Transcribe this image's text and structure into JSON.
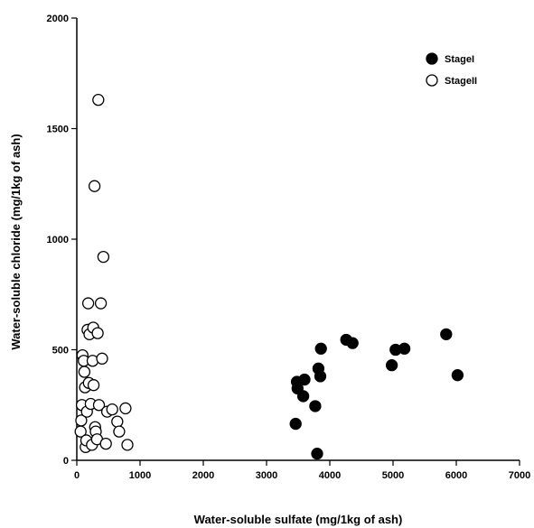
{
  "chart_data": {
    "type": "scatter",
    "xlabel": "Water-soluble sulfate (mg/1kg of ash)",
    "ylabel": "Water-soluble chloride (mg/1kg of ash)",
    "xlim": [
      0,
      7000
    ],
    "ylim": [
      0,
      2000
    ],
    "x_ticks": [
      "0",
      "1000",
      "2000",
      "3000",
      "4000",
      "5000",
      "6000",
      "7000"
    ],
    "y_ticks": [
      "0",
      "500",
      "1000",
      "1500",
      "2000"
    ],
    "legend_position": "top-right",
    "series": [
      {
        "name": "StageI",
        "marker": "filled-circle",
        "color": "#000000",
        "points": [
          {
            "x": 3460,
            "y": 165
          },
          {
            "x": 3480,
            "y": 355
          },
          {
            "x": 3490,
            "y": 325
          },
          {
            "x": 3580,
            "y": 290
          },
          {
            "x": 3600,
            "y": 365
          },
          {
            "x": 3770,
            "y": 245
          },
          {
            "x": 3800,
            "y": 30
          },
          {
            "x": 3820,
            "y": 415
          },
          {
            "x": 3850,
            "y": 380
          },
          {
            "x": 3860,
            "y": 505
          },
          {
            "x": 4260,
            "y": 545
          },
          {
            "x": 4360,
            "y": 530
          },
          {
            "x": 4980,
            "y": 430
          },
          {
            "x": 5040,
            "y": 500
          },
          {
            "x": 5180,
            "y": 505
          },
          {
            "x": 5840,
            "y": 570
          },
          {
            "x": 6020,
            "y": 385
          }
        ]
      },
      {
        "name": "StageII",
        "marker": "open-circle",
        "color": "#000000",
        "points": [
          {
            "x": 60,
            "y": 130
          },
          {
            "x": 70,
            "y": 180
          },
          {
            "x": 80,
            "y": 250
          },
          {
            "x": 90,
            "y": 475
          },
          {
            "x": 110,
            "y": 450
          },
          {
            "x": 120,
            "y": 400
          },
          {
            "x": 130,
            "y": 330
          },
          {
            "x": 140,
            "y": 60
          },
          {
            "x": 150,
            "y": 90
          },
          {
            "x": 160,
            "y": 220
          },
          {
            "x": 170,
            "y": 590
          },
          {
            "x": 180,
            "y": 710
          },
          {
            "x": 190,
            "y": 350
          },
          {
            "x": 200,
            "y": 570
          },
          {
            "x": 220,
            "y": 255
          },
          {
            "x": 240,
            "y": 70
          },
          {
            "x": 250,
            "y": 450
          },
          {
            "x": 260,
            "y": 600
          },
          {
            "x": 265,
            "y": 340
          },
          {
            "x": 280,
            "y": 1240
          },
          {
            "x": 290,
            "y": 150
          },
          {
            "x": 300,
            "y": 130
          },
          {
            "x": 320,
            "y": 95
          },
          {
            "x": 330,
            "y": 575
          },
          {
            "x": 340,
            "y": 1630
          },
          {
            "x": 350,
            "y": 250
          },
          {
            "x": 380,
            "y": 710
          },
          {
            "x": 400,
            "y": 460
          },
          {
            "x": 420,
            "y": 920
          },
          {
            "x": 460,
            "y": 75
          },
          {
            "x": 480,
            "y": 220
          },
          {
            "x": 560,
            "y": 230
          },
          {
            "x": 640,
            "y": 175
          },
          {
            "x": 670,
            "y": 130
          },
          {
            "x": 770,
            "y": 235
          },
          {
            "x": 800,
            "y": 70
          }
        ]
      }
    ]
  }
}
